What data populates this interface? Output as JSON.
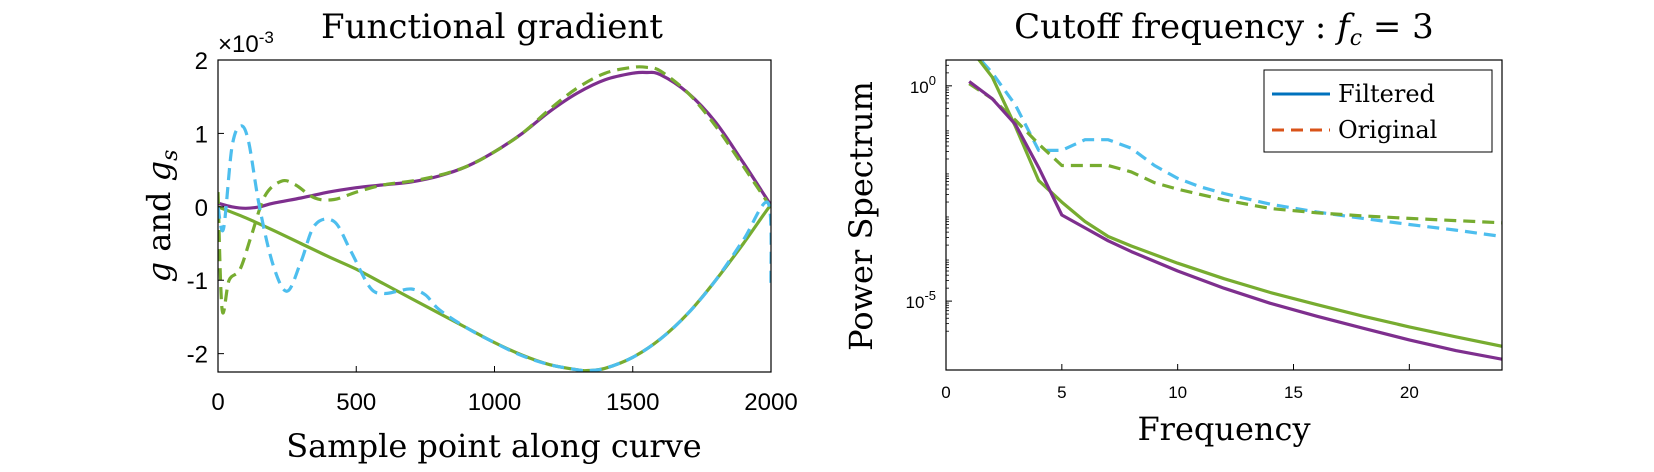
{
  "chart_data": [
    {
      "type": "line",
      "title": "Functional gradient",
      "xlabel": "Sample point along curve",
      "ylabel": "g and g_s",
      "ylabel_parts": [
        "g",
        " and ",
        "g",
        "s"
      ],
      "y_exponent_label": [
        "×10",
        "-3"
      ],
      "xlim": [
        0,
        2000
      ],
      "ylim": [
        -2.25,
        2
      ],
      "xticks": [
        0,
        500,
        1000,
        1500,
        2000
      ],
      "xtick_labels": [
        "0",
        "500",
        "1000",
        "1500",
        "2000"
      ],
      "yticks": [
        -2,
        -1,
        0,
        1,
        2
      ],
      "ytick_labels": [
        "-2",
        "-1",
        "0",
        "1",
        "2"
      ],
      "grid": false,
      "series": [
        {
          "color": "#7E2F8E",
          "style": "solid",
          "x": [
            0,
            50,
            100,
            150,
            200,
            300,
            400,
            500,
            600,
            700,
            800,
            900,
            1000,
            1100,
            1200,
            1300,
            1400,
            1500,
            1550,
            1600,
            1700,
            1800,
            1900,
            2000
          ],
          "y": [
            0.05,
            0.0,
            -0.02,
            0.0,
            0.05,
            0.12,
            0.2,
            0.26,
            0.3,
            0.34,
            0.42,
            0.55,
            0.75,
            1.0,
            1.3,
            1.55,
            1.73,
            1.82,
            1.83,
            1.8,
            1.55,
            1.15,
            0.6,
            0.02
          ]
        },
        {
          "color": "#77AC30",
          "style": "dashed",
          "x": [
            0,
            15,
            40,
            80,
            120,
            170,
            230,
            280,
            350,
            420,
            500,
            600,
            700,
            800,
            900,
            1000,
            1100,
            1200,
            1300,
            1400,
            1500,
            1550,
            1600,
            1700,
            1800,
            1900,
            1990,
            2000
          ],
          "y": [
            0.2,
            -1.4,
            -1.0,
            -0.85,
            -0.4,
            0.15,
            0.35,
            0.3,
            0.12,
            0.1,
            0.2,
            0.3,
            0.35,
            0.43,
            0.55,
            0.75,
            1.0,
            1.33,
            1.62,
            1.82,
            1.9,
            1.9,
            1.85,
            1.55,
            1.1,
            0.55,
            0.05,
            0.02
          ]
        },
        {
          "color": "#77AC30",
          "style": "solid",
          "x": [
            0,
            100,
            200,
            300,
            400,
            500,
            600,
            700,
            800,
            900,
            1000,
            1100,
            1200,
            1300,
            1340,
            1400,
            1500,
            1600,
            1700,
            1800,
            1900,
            1990,
            2000
          ],
          "y": [
            0.0,
            -0.15,
            -0.32,
            -0.5,
            -0.68,
            -0.85,
            -1.05,
            -1.25,
            -1.45,
            -1.65,
            -1.85,
            -2.02,
            -2.15,
            -2.22,
            -2.23,
            -2.2,
            -2.05,
            -1.8,
            -1.45,
            -1.0,
            -0.5,
            -0.02,
            0.0
          ]
        },
        {
          "color": "#4DBEEE",
          "style": "dashed",
          "x": [
            0,
            20,
            50,
            80,
            110,
            150,
            200,
            250,
            300,
            350,
            420,
            480,
            550,
            600,
            650,
            700,
            750,
            800,
            900,
            1000,
            1100,
            1200,
            1300,
            1340,
            1400,
            1500,
            1600,
            1700,
            1800,
            1900,
            1990,
            2000
          ],
          "y": [
            0.0,
            -0.3,
            0.8,
            1.1,
            0.9,
            0.0,
            -0.8,
            -1.15,
            -0.75,
            -0.25,
            -0.2,
            -0.6,
            -1.1,
            -1.18,
            -1.15,
            -1.12,
            -1.2,
            -1.4,
            -1.65,
            -1.85,
            -2.03,
            -2.15,
            -2.22,
            -2.23,
            -2.2,
            -2.05,
            -1.8,
            -1.45,
            -1.0,
            -0.45,
            0.05,
            -1.05
          ]
        }
      ]
    },
    {
      "type": "line",
      "title": [
        "Cutoff frequency : ",
        "f",
        "c",
        " = 3"
      ],
      "xlabel": "Frequency",
      "ylabel": "Power Spectrum",
      "yscale": "log",
      "xlim": [
        0,
        24
      ],
      "ylim_log10": [
        -6.6,
        0.6
      ],
      "xticks": [
        0,
        5,
        10,
        15,
        20
      ],
      "xtick_labels": [
        "0",
        "5",
        "10",
        "15",
        "20"
      ],
      "yticks_log10": [
        0,
        -5
      ],
      "ytick_labels": [
        [
          "10",
          "0"
        ],
        [
          "10",
          "-5"
        ]
      ],
      "grid": false,
      "legend": {
        "position": "top-right",
        "items": [
          {
            "label": "Filtered",
            "color": "#0072BD",
            "style": "solid"
          },
          {
            "label": "Original",
            "color": "#D95319",
            "style": "dashed"
          }
        ]
      },
      "series": [
        {
          "color": "#4DBEEE",
          "style": "dashed",
          "x": [
            1,
            2,
            3,
            4,
            5,
            6,
            7,
            8,
            9,
            10,
            11,
            12,
            14,
            16,
            18,
            20,
            22,
            24
          ],
          "y_log10": [
            0.9,
            0.3,
            -0.45,
            -1.5,
            -1.5,
            -1.25,
            -1.25,
            -1.45,
            -1.85,
            -2.15,
            -2.35,
            -2.5,
            -2.75,
            -2.93,
            -3.08,
            -3.22,
            -3.35,
            -3.5
          ]
        },
        {
          "color": "#77AC30",
          "style": "dashed",
          "x": [
            1,
            2,
            3,
            4,
            5,
            6,
            7,
            8,
            9,
            10,
            12,
            14,
            16,
            18,
            20,
            22,
            24
          ],
          "y_log10": [
            0.05,
            -0.3,
            -0.8,
            -1.35,
            -1.85,
            -1.85,
            -1.85,
            -2.0,
            -2.25,
            -2.4,
            -2.65,
            -2.85,
            -2.95,
            -3.02,
            -3.08,
            -3.13,
            -3.18
          ]
        },
        {
          "color": "#77AC30",
          "style": "solid",
          "x": [
            1,
            2,
            3,
            4,
            5,
            6,
            7,
            8,
            10,
            12,
            14,
            16,
            18,
            20,
            22,
            24
          ],
          "y_log10": [
            0.9,
            0.2,
            -0.95,
            -2.2,
            -2.7,
            -3.15,
            -3.5,
            -3.72,
            -4.12,
            -4.48,
            -4.8,
            -5.08,
            -5.35,
            -5.6,
            -5.83,
            -6.05
          ]
        },
        {
          "color": "#7E2F8E",
          "style": "solid",
          "x": [
            1,
            2,
            3,
            4,
            5,
            6,
            7,
            8,
            10,
            12,
            14,
            16,
            18,
            20,
            22,
            24
          ],
          "y_log10": [
            0.1,
            -0.3,
            -0.9,
            -1.9,
            -3.0,
            -3.3,
            -3.6,
            -3.85,
            -4.3,
            -4.7,
            -5.05,
            -5.35,
            -5.63,
            -5.9,
            -6.15,
            -6.35
          ]
        }
      ]
    }
  ]
}
